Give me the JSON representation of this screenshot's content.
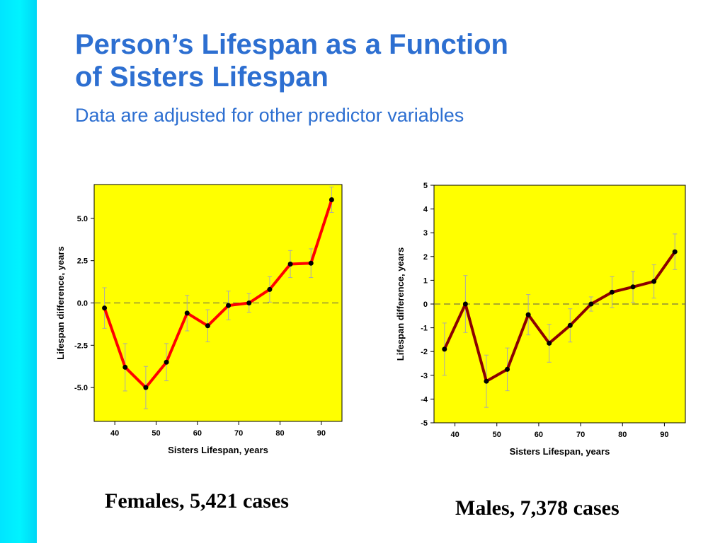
{
  "slide": {
    "title": "Person’s Lifespan as  a  Function\nof  Sisters  Lifespan",
    "subtitle": "Data are adjusted for other predictor variables",
    "caption_females": "Females, 5,421 cases",
    "caption_males": "Males, 7,378 cases",
    "colors": {
      "title": "#2d6fd1",
      "left_bar": "#00eeff",
      "plot_background": "#ffff00",
      "females_line": "#ff0000",
      "males_line": "#8b0000"
    }
  },
  "chart_data": [
    {
      "type": "line",
      "xlabel": "Sisters Lifespan, years",
      "ylabel": "Lifespan difference, years",
      "xlim": [
        35,
        95
      ],
      "ylim": [
        -7,
        7
      ],
      "xticks": [
        40,
        50,
        60,
        70,
        80,
        90
      ],
      "yticks": [
        -5,
        -2.5,
        0,
        2.5,
        5
      ],
      "ytick_labels": [
        "-5.0",
        "-2.5",
        "0.0",
        "2.5",
        "5.0"
      ],
      "reference_line_y": 0,
      "series": [
        {
          "x": [
            37.5,
            42.5,
            47.5,
            52.5,
            57.5,
            62.5,
            67.5,
            72.5,
            77.5,
            82.5,
            87.5,
            92.5
          ],
          "y": [
            -0.3,
            -3.8,
            -5.0,
            -3.5,
            -0.6,
            -1.35,
            -0.15,
            0.0,
            0.8,
            2.3,
            2.35,
            6.1
          ],
          "error": [
            1.2,
            1.4,
            1.25,
            1.1,
            1.05,
            0.95,
            0.85,
            0.55,
            0.75,
            0.8,
            0.85,
            0.75
          ]
        }
      ]
    },
    {
      "type": "line",
      "xlabel": "Sisters Lifespan, years",
      "ylabel": "Lifespan difference, years",
      "xlim": [
        35,
        95
      ],
      "ylim": [
        -5,
        5
      ],
      "xticks": [
        40,
        50,
        60,
        70,
        80,
        90
      ],
      "yticks": [
        -5,
        -4,
        -3,
        -2,
        -1,
        0,
        1,
        2,
        3,
        4,
        5
      ],
      "ytick_labels": [
        "-5",
        "-4",
        "-3",
        "-2",
        "-1",
        "0",
        "1",
        "2",
        "3",
        "4",
        "5"
      ],
      "reference_line_y": 0,
      "series": [
        {
          "x": [
            37.5,
            42.5,
            47.5,
            52.5,
            57.5,
            62.5,
            67.5,
            72.5,
            77.5,
            82.5,
            87.5,
            92.5
          ],
          "y": [
            -1.9,
            0.0,
            -3.25,
            -2.75,
            -0.45,
            -1.65,
            -0.9,
            0.0,
            0.5,
            0.72,
            0.95,
            2.2
          ],
          "error": [
            1.1,
            1.2,
            1.1,
            0.9,
            0.85,
            0.8,
            0.7,
            0.3,
            0.65,
            0.65,
            0.7,
            0.75
          ]
        }
      ]
    }
  ]
}
